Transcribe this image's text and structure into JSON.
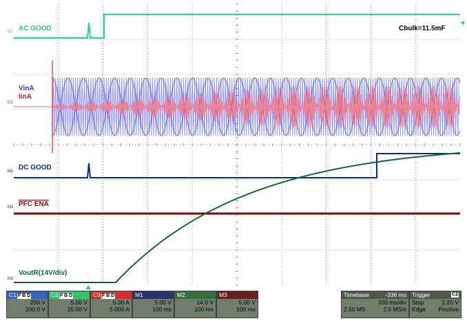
{
  "traces": {
    "c2": {
      "label": "AC GOOD",
      "marker": "C2",
      "color": "#19e07a"
    },
    "c3": {
      "label_v": "VinA",
      "label_i": "IinA",
      "marker": "C3",
      "color_v": "#3c46ff",
      "color_i": "#ff6b6b"
    },
    "m1": {
      "label": "DC GOOD",
      "marker": "M1",
      "color": "#0a2a8c"
    },
    "m3": {
      "label": "PFC ENA",
      "marker": "M3",
      "color": "#7a0a0a"
    },
    "m2": {
      "label": "VoutR(14V/div)",
      "marker": "M2",
      "color": "#0c6a2c"
    }
  },
  "annotation": {
    "text": "Cbulk=11.5mF"
  },
  "channels": [
    {
      "name": "C1",
      "chips": "F B D",
      "row1": "200 V",
      "row2": "200.0 V",
      "bg": "#2f63c8",
      "fg": "#ffffff"
    },
    {
      "name": "C2",
      "chips": "F B D",
      "row1": "5.00 V",
      "row2": "15.00 V",
      "bg": "#27c96a",
      "fg": "#ffffff"
    },
    {
      "name": "C3",
      "chips": "F B D",
      "row1": "5.00 A",
      "row2": "5.000 A",
      "bg": "#dd2a2a",
      "fg": "#ffffff"
    },
    {
      "name": "M1",
      "chips": "",
      "row1": "5.00 V",
      "row2": "100 ms",
      "bg": "#24346c",
      "fg": "#ffffff"
    },
    {
      "name": "M2",
      "chips": "",
      "row1": "14.0 V",
      "row2": "100 ms",
      "bg": "#35703f",
      "fg": "#ffffff"
    },
    {
      "name": "M3",
      "chips": "",
      "row1": "5.00 V",
      "row2": "100 ms",
      "bg": "#6e1e1e",
      "fg": "#ffffff"
    }
  ],
  "timebase": {
    "title": "Timebase",
    "delay": "-336 ms",
    "div": "100 ms/div",
    "samples": "2.50 MS",
    "rate": "2.5 MS/s"
  },
  "trigger": {
    "title": "Trigger",
    "source": "C2",
    "mode": "Stop",
    "level": "1.20 V",
    "type": "Edge",
    "slope": "Positive"
  },
  "colors": {
    "grid": "#a8a8a8",
    "panel_bg": "#6f7f6a",
    "panel_title_bg": "#4d5a4a"
  }
}
